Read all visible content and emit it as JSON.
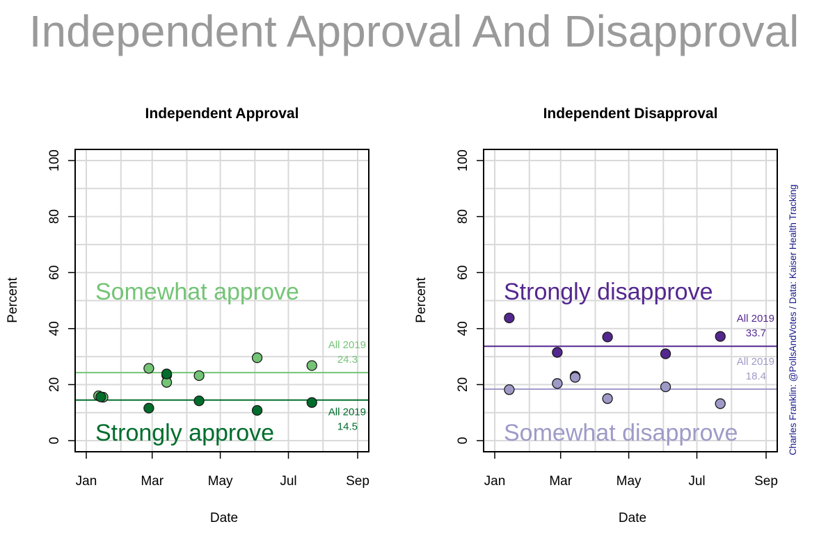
{
  "title": "Independent Approval And Disapproval",
  "credit": "Charles Franklin: @PollsAndVotes / Data: Kaiser Health Tracking",
  "chart_data": [
    {
      "type": "scatter",
      "title": "Independent Approval",
      "xlabel": "Date",
      "ylabel": "Percent",
      "ylim": [
        0,
        100
      ],
      "yticks": [
        "0",
        "20",
        "40",
        "60",
        "80",
        "100"
      ],
      "xticks": [
        "Jan",
        "Mar",
        "May",
        "Jul",
        "Sep"
      ],
      "xlim": [
        "2019-01-01",
        "2019-09-01"
      ],
      "grid": true,
      "series": [
        {
          "name": "Somewhat approve",
          "color": "#74c476",
          "points": [
            {
              "x": "2019-01-12",
              "y": 16
            },
            {
              "x": "2019-01-16",
              "y": 15.5
            },
            {
              "x": "2019-02-26",
              "y": 25.8
            },
            {
              "x": "2019-03-14",
              "y": 23.4
            },
            {
              "x": "2019-03-14",
              "y": 20.8
            },
            {
              "x": "2019-04-12",
              "y": 23.2
            },
            {
              "x": "2019-06-03",
              "y": 29.6
            },
            {
              "x": "2019-07-22",
              "y": 26.8
            }
          ],
          "average": 24.3,
          "average_label": "All 2019",
          "average_text": "24.3"
        },
        {
          "name": "Strongly approve",
          "color": "#006d2c",
          "points": [
            {
              "x": "2019-01-14",
              "y": 15.6
            },
            {
              "x": "2019-02-26",
              "y": 11.6
            },
            {
              "x": "2019-03-14",
              "y": 23.8
            },
            {
              "x": "2019-04-12",
              "y": 14.2
            },
            {
              "x": "2019-06-03",
              "y": 10.8
            },
            {
              "x": "2019-07-22",
              "y": 13.6
            }
          ],
          "average": 14.5,
          "average_label": "All 2019",
          "average_text": "14.5"
        }
      ]
    },
    {
      "type": "scatter",
      "title": "Independent Disapproval",
      "xlabel": "Date",
      "ylabel": "Percent",
      "ylim": [
        0,
        100
      ],
      "yticks": [
        "0",
        "20",
        "40",
        "60",
        "80",
        "100"
      ],
      "xticks": [
        "Jan",
        "Mar",
        "May",
        "Jul",
        "Sep"
      ],
      "xlim": [
        "2019-01-01",
        "2019-09-01"
      ],
      "grid": true,
      "series": [
        {
          "name": "Strongly disapprove",
          "color": "#54278f",
          "points": [
            {
              "x": "2019-01-14",
              "y": 43.8
            },
            {
              "x": "2019-02-26",
              "y": 31.5
            },
            {
              "x": "2019-03-14",
              "y": 23
            },
            {
              "x": "2019-04-12",
              "y": 37
            },
            {
              "x": "2019-06-03",
              "y": 31
            },
            {
              "x": "2019-07-22",
              "y": 37.2
            }
          ],
          "average": 33.7,
          "average_label": "All 2019",
          "average_text": "33.7"
        },
        {
          "name": "Somewhat disapprove",
          "color": "#9e9ac8",
          "points": [
            {
              "x": "2019-01-14",
              "y": 18.2
            },
            {
              "x": "2019-02-26",
              "y": 20.4
            },
            {
              "x": "2019-03-14",
              "y": 22.6
            },
            {
              "x": "2019-04-12",
              "y": 15
            },
            {
              "x": "2019-06-03",
              "y": 19.2
            },
            {
              "x": "2019-07-22",
              "y": 13.2
            }
          ],
          "average": 18.4,
          "average_label": "All 2019",
          "average_text": "18.4"
        }
      ]
    }
  ]
}
